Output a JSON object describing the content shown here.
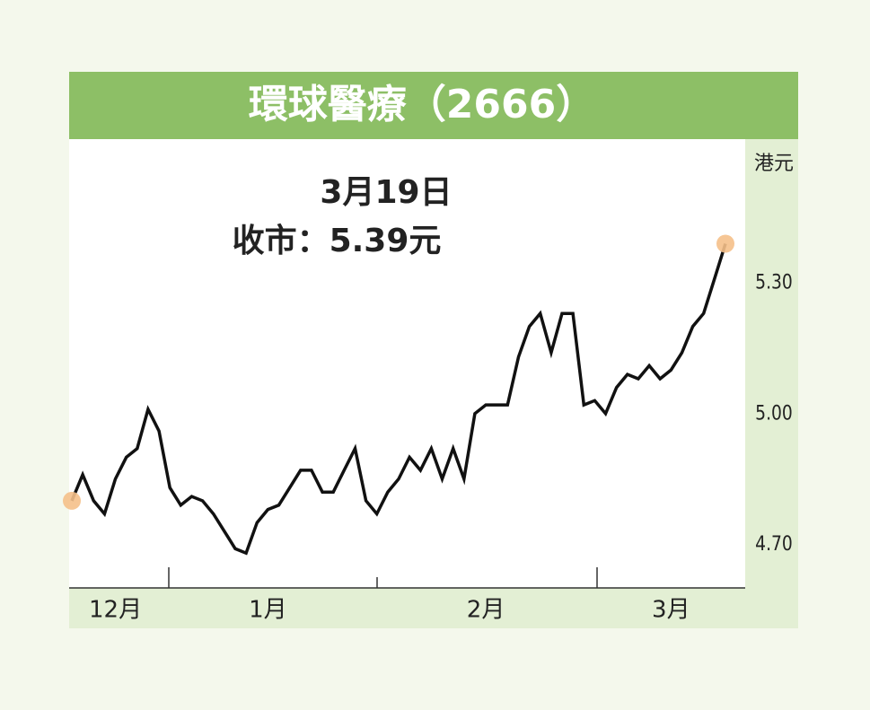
{
  "chart_data": {
    "type": "line",
    "title": "環球醫療（2666）",
    "annotations": [
      "3月19日",
      "收市：5.39元"
    ],
    "y_axis_label": "港元",
    "color": "#111111",
    "marker_color": "#f5c08a",
    "grid": false,
    "ylim": [
      4.6,
      5.63
    ],
    "yticks": [
      {
        "value": 4.7,
        "label": "4.70"
      },
      {
        "value": 5.0,
        "label": "5.00"
      },
      {
        "value": 5.3,
        "label": "5.30"
      }
    ],
    "categories": [
      null,
      null,
      null,
      null,
      "12月",
      null,
      null,
      null,
      null,
      null,
      null,
      null,
      null,
      null,
      null,
      null,
      null,
      null,
      "1月",
      null,
      null,
      null,
      null,
      null,
      null,
      null,
      null,
      null,
      null,
      null,
      null,
      null,
      null,
      null,
      null,
      null,
      null,
      null,
      "2月",
      null,
      null,
      null,
      null,
      null,
      null,
      null,
      null,
      null,
      null,
      null,
      null,
      null,
      null,
      null,
      null,
      "3月",
      null,
      null,
      null,
      null,
      null
    ],
    "values": [
      4.8,
      4.86,
      4.8,
      4.77,
      4.85,
      4.9,
      4.92,
      5.01,
      4.96,
      4.83,
      4.79,
      4.81,
      4.8,
      4.77,
      4.73,
      4.69,
      4.68,
      4.75,
      4.78,
      4.79,
      4.83,
      4.87,
      4.87,
      4.82,
      4.82,
      4.87,
      4.92,
      4.8,
      4.77,
      4.82,
      4.85,
      4.9,
      4.87,
      4.92,
      4.85,
      4.92,
      4.85,
      5.0,
      5.02,
      5.02,
      5.02,
      5.13,
      5.2,
      5.23,
      5.14,
      5.23,
      5.23,
      5.02,
      5.03,
      5.0,
      5.06,
      5.09,
      5.08,
      5.11,
      5.08,
      5.1,
      5.14,
      5.2,
      5.23,
      5.31,
      5.39
    ]
  }
}
